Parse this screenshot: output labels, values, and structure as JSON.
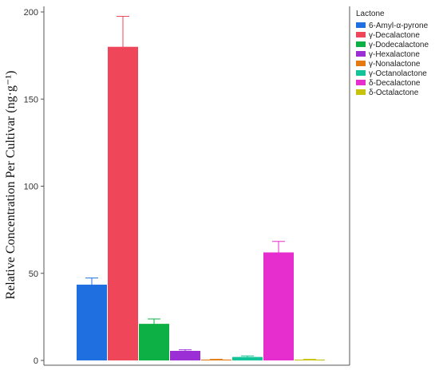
{
  "chart_data": {
    "type": "bar",
    "xlabel": "",
    "ylabel": "Relative Concentration Per Cultivar (ng·g⁻¹)",
    "ylim": [
      0,
      200
    ],
    "yticks": [
      0,
      50,
      100,
      150,
      200
    ],
    "grid": false,
    "legend_position": "right",
    "legend_title": "Lactone",
    "series": [
      {
        "name": "6-Amyl-α-pyrone",
        "value": 43.5,
        "error": 3.8,
        "color": "#1f6fe0"
      },
      {
        "name": "γ-Decalactone",
        "value": 180,
        "error": 17.5,
        "color": "#f0465a"
      },
      {
        "name": "γ-Dodecalactone",
        "value": 21,
        "error": 2.8,
        "color": "#0cb044"
      },
      {
        "name": "γ-Hexalactone",
        "value": 5.5,
        "error": 0.6,
        "color": "#9c2ed6"
      },
      {
        "name": "γ-Nonalactone",
        "value": 0.5,
        "error": 0.15,
        "color": "#e57a12"
      },
      {
        "name": "γ-Octanolactone",
        "value": 2,
        "error": 0.6,
        "color": "#13c49a"
      },
      {
        "name": "δ-Decalactone",
        "value": 62,
        "error": 6.3,
        "color": "#e62ecf"
      },
      {
        "name": "δ-Octalactone",
        "value": 0.5,
        "error": 0.15,
        "color": "#c9c20a"
      }
    ]
  }
}
